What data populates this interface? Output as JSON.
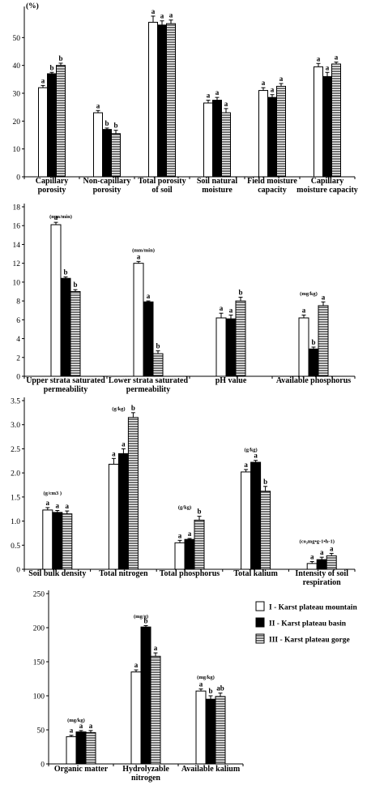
{
  "legend": [
    {
      "label": "I - Karst plateau mountain",
      "pattern": "white"
    },
    {
      "label": "II - Karst plateau basin",
      "pattern": "black"
    },
    {
      "label": "III - Karst plateau gorge",
      "pattern": "hatch"
    }
  ],
  "chart_data": [
    {
      "type": "bar",
      "title": "",
      "ylabel": "(%)",
      "ylim": [
        0,
        60
      ],
      "yticks": [
        0,
        10,
        20,
        30,
        40,
        50
      ],
      "categories": [
        [
          "Capillary",
          "porosity"
        ],
        [
          "Non-capillary",
          "porosity"
        ],
        [
          "Total porosity",
          "of soil"
        ],
        [
          "Soil natural",
          "moisture"
        ],
        [
          "Field moisture",
          "capacity"
        ],
        [
          "Capillary",
          "moisture capacity"
        ]
      ],
      "series": [
        {
          "values": [
            32,
            23,
            55.5,
            26.5,
            31,
            39.5
          ],
          "errors": [
            0.8,
            0.8,
            2.2,
            1.0,
            1.0,
            1.2
          ],
          "sig": [
            "a",
            "a",
            "a",
            "a",
            "a",
            "a"
          ]
        },
        {
          "values": [
            37,
            17,
            54.5,
            27.5,
            28.5,
            36
          ],
          "errors": [
            0.5,
            0.5,
            1.5,
            1.0,
            1.0,
            1.5
          ],
          "sig": [
            "b",
            "b",
            "a",
            "a",
            "a",
            "a"
          ]
        },
        {
          "values": [
            40,
            15.5,
            55,
            23,
            32.5,
            40.5
          ],
          "errors": [
            0.8,
            1.2,
            1.3,
            1.5,
            1.0,
            0.7
          ],
          "sig": [
            "b",
            "b",
            "a",
            "a",
            "a",
            "a"
          ]
        }
      ],
      "annotations": []
    },
    {
      "type": "bar",
      "title": "",
      "ylabel": "",
      "ylim": [
        0,
        18
      ],
      "yticks": [
        0,
        2,
        4,
        6,
        8,
        10,
        12,
        14,
        16,
        18
      ],
      "categories": [
        [
          "Upper strata saturated",
          "permeability"
        ],
        [
          "Lower strata saturated",
          "permeability"
        ],
        [
          "pH value"
        ],
        [
          "Available phosphorus"
        ]
      ],
      "series": [
        {
          "values": [
            16.1,
            12,
            6.2,
            6.2
          ],
          "errors": [
            0.25,
            0.2,
            0.5,
            0.3
          ],
          "sig": [
            "a",
            "a",
            "a",
            "a"
          ]
        },
        {
          "values": [
            10.4,
            7.9,
            6.1,
            2.9
          ],
          "errors": [
            0.15,
            0.1,
            0.4,
            0.2
          ],
          "sig": [
            "b",
            "a",
            "a",
            "b"
          ]
        },
        {
          "values": [
            9.0,
            2.4,
            8.0,
            7.5
          ],
          "errors": [
            0.2,
            0.3,
            0.4,
            0.4
          ],
          "sig": [
            "b",
            "b",
            "b",
            "a"
          ]
        }
      ],
      "annotations": [
        {
          "text": "(mm/min)",
          "x": 0,
          "y": 16.8
        },
        {
          "text": "(mm/min)",
          "x": 1,
          "y": 13.2
        },
        {
          "text": "(mg/kg)",
          "x": 3,
          "y": 8.6
        }
      ]
    },
    {
      "type": "bar",
      "title": "",
      "ylabel": "",
      "ylim": [
        0,
        3.5
      ],
      "yticks": [
        0,
        0.5,
        1.0,
        1.5,
        2.0,
        2.5,
        3.0,
        3.5
      ],
      "ytickLabels": [
        "0",
        "0.5",
        "1.0",
        "1.5",
        "2.0",
        "2.5",
        "3.0",
        "3.5"
      ],
      "categories": [
        [
          "Soil bulk density"
        ],
        [
          "Total nitrogen"
        ],
        [
          "Total phosphorus"
        ],
        [
          "Total kalium"
        ],
        [
          "Intensity of soil",
          "respiration"
        ]
      ],
      "series": [
        {
          "values": [
            1.23,
            2.18,
            0.55,
            2.02,
            0.12
          ],
          "errors": [
            0.05,
            0.12,
            0.05,
            0.05,
            0.04
          ],
          "sig": [
            "a",
            "a",
            "a",
            "a",
            "a"
          ]
        },
        {
          "values": [
            1.18,
            2.4,
            0.62,
            2.22,
            0.2
          ],
          "errors": [
            0.04,
            0.1,
            0.02,
            0.04,
            0.05
          ],
          "sig": [
            "a",
            "a",
            "a",
            "a",
            "a"
          ]
        },
        {
          "values": [
            1.15,
            3.15,
            1.02,
            1.62,
            0.28
          ],
          "errors": [
            0.06,
            0.1,
            0.08,
            0.1,
            0.05
          ],
          "sig": [
            "a",
            "b",
            "b",
            "b",
            "a"
          ]
        }
      ],
      "annotations": [
        {
          "text": "(g/cm3 )",
          "x": 0,
          "y": 1.55
        },
        {
          "text": "(g/kg)",
          "x": 1,
          "y": 3.3
        },
        {
          "text": "(g/kg)",
          "x": 2,
          "y": 1.25
        },
        {
          "text": "(g/kg)",
          "x": 3,
          "y": 2.45
        },
        {
          "text": "(co₂mg•g-1•h-1)",
          "x": 4,
          "y": 0.55
        }
      ]
    },
    {
      "type": "bar",
      "title": "",
      "ylabel": "",
      "ylim": [
        0,
        250
      ],
      "yticks": [
        0,
        50,
        100,
        150,
        200,
        250
      ],
      "categories": [
        [
          "Organic matter"
        ],
        [
          "Hydrolyzable",
          "nitrogen"
        ],
        [
          "Available kalium"
        ]
      ],
      "series": [
        {
          "values": [
            40,
            135,
            107
          ],
          "errors": [
            2,
            3,
            3
          ],
          "sig": [
            "a",
            "a",
            "a"
          ]
        },
        {
          "values": [
            47,
            201,
            95
          ],
          "errors": [
            2,
            2,
            5
          ],
          "sig": [
            "a",
            "b",
            "b"
          ]
        },
        {
          "values": [
            46,
            158,
            99
          ],
          "errors": [
            3,
            5,
            5
          ],
          "sig": [
            "a",
            "a",
            "ab"
          ]
        }
      ],
      "annotations": [
        {
          "text": "(mg/kg)",
          "x": 0,
          "y": 62
        },
        {
          "text": "(mg/g)",
          "x": 1,
          "y": 214
        },
        {
          "text": "(mg/kg)",
          "x": 2,
          "y": 125
        }
      ]
    }
  ]
}
